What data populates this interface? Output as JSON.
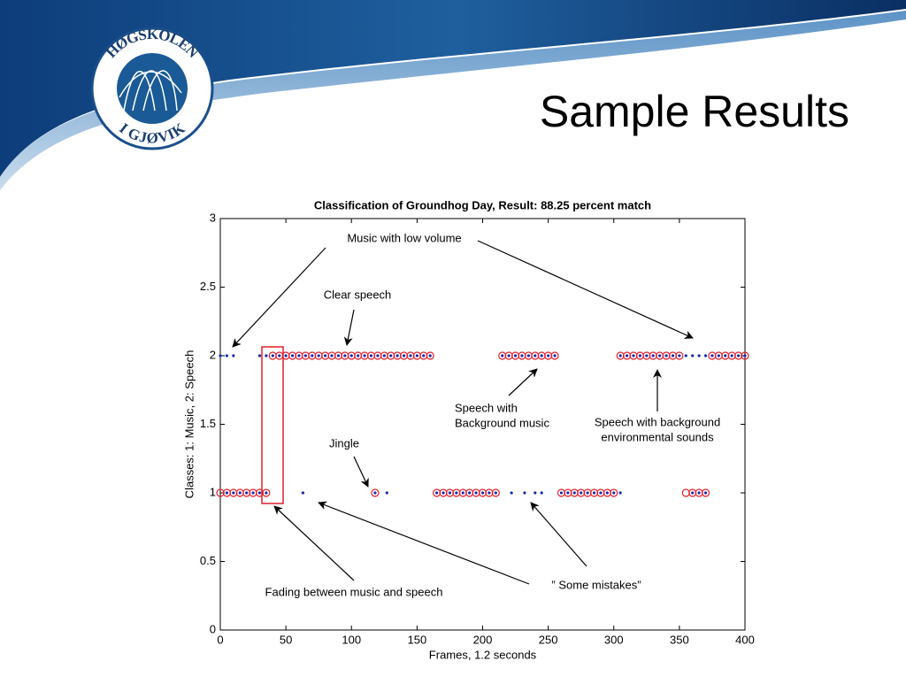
{
  "header": {
    "title": "Sample Results"
  },
  "logo": {
    "top": "HØGSKOLEN",
    "bottom": "I GJØVIK"
  },
  "chart_data": {
    "type": "scatter",
    "title": "Classification of Groundhog Day, Result: 88.25 percent match",
    "xlabel": "Frames, 1.2 seconds",
    "ylabel": "Classes: 1: Music, 2: Speech",
    "xlim": [
      0,
      400
    ],
    "ylim": [
      0,
      3
    ],
    "xticks": [
      0,
      50,
      100,
      150,
      200,
      250,
      300,
      350,
      400
    ],
    "yticks": [
      0,
      0.5,
      1,
      1.5,
      2,
      2.5,
      3
    ],
    "grid": false,
    "series": [
      {
        "color": "#e0202a",
        "marker": "circle",
        "x": [
          0,
          5,
          10,
          15,
          20,
          25,
          30,
          35,
          40,
          45,
          50,
          55,
          60,
          65,
          70,
          75,
          80,
          85,
          90,
          95,
          100,
          105,
          110,
          115,
          118,
          120,
          125,
          130,
          135,
          140,
          145,
          150,
          155,
          160,
          165,
          170,
          175,
          180,
          185,
          190,
          195,
          200,
          205,
          210,
          215,
          220,
          225,
          230,
          235,
          240,
          245,
          250,
          255,
          260,
          265,
          270,
          275,
          280,
          285,
          290,
          295,
          300,
          305,
          310,
          315,
          320,
          325,
          330,
          335,
          340,
          345,
          350,
          355,
          360,
          365,
          370,
          375,
          380,
          385,
          390,
          395,
          400
        ],
        "values": [
          1,
          1,
          1,
          1,
          1,
          1,
          1,
          1,
          2,
          2,
          2,
          2,
          2,
          2,
          2,
          2,
          2,
          2,
          2,
          2,
          2,
          2,
          2,
          2,
          1,
          2,
          2,
          2,
          2,
          2,
          2,
          2,
          2,
          2,
          1,
          1,
          1,
          1,
          1,
          1,
          1,
          1,
          1,
          1,
          2,
          2,
          2,
          2,
          2,
          2,
          2,
          2,
          2,
          1,
          1,
          1,
          1,
          1,
          1,
          1,
          1,
          1,
          2,
          2,
          2,
          2,
          2,
          2,
          2,
          2,
          2,
          2,
          1,
          1,
          1,
          1,
          2,
          2,
          2,
          2,
          2,
          2
        ]
      },
      {
        "color": "#1a2aa8",
        "marker": "dot",
        "x": [
          0,
          5,
          10,
          5,
          10,
          15,
          20,
          25,
          30,
          35,
          30,
          35,
          40,
          45,
          50,
          55,
          60,
          65,
          70,
          75,
          80,
          85,
          90,
          95,
          100,
          105,
          110,
          115,
          120,
          125,
          130,
          135,
          140,
          145,
          150,
          155,
          160,
          63,
          118,
          127,
          165,
          170,
          175,
          180,
          185,
          190,
          195,
          200,
          205,
          210,
          215,
          220,
          225,
          230,
          235,
          240,
          245,
          250,
          255,
          222,
          232,
          240,
          245,
          260,
          265,
          270,
          275,
          280,
          285,
          290,
          295,
          300,
          305,
          305,
          310,
          315,
          320,
          325,
          330,
          335,
          340,
          345,
          350,
          355,
          360,
          365,
          370,
          375,
          380,
          385,
          390,
          395,
          400,
          360,
          365,
          370
        ],
        "values": [
          2,
          2,
          2,
          1,
          1,
          1,
          1,
          1,
          1,
          1,
          2,
          2,
          2,
          2,
          2,
          2,
          2,
          2,
          2,
          2,
          2,
          2,
          2,
          2,
          2,
          2,
          2,
          2,
          2,
          2,
          2,
          2,
          2,
          2,
          2,
          2,
          2,
          1,
          1,
          1,
          1,
          1,
          1,
          1,
          1,
          1,
          1,
          1,
          1,
          1,
          2,
          2,
          2,
          2,
          2,
          2,
          2,
          2,
          2,
          1,
          1,
          1,
          1,
          1,
          1,
          1,
          1,
          1,
          1,
          1,
          1,
          1,
          1,
          2,
          2,
          2,
          2,
          2,
          2,
          2,
          2,
          2,
          2,
          2,
          2,
          2,
          2,
          2,
          2,
          2,
          2,
          2,
          2,
          1,
          1,
          1
        ]
      }
    ],
    "annotations": [
      [
        "Music with low volume"
      ],
      [
        "Clear speech"
      ],
      [
        "Speech with",
        "Background music"
      ],
      [
        "Speech with background",
        "environmental sounds"
      ],
      [
        "Jingle"
      ],
      [
        "Fading between music and speech"
      ],
      [
        "” Some mistakes”"
      ]
    ]
  }
}
